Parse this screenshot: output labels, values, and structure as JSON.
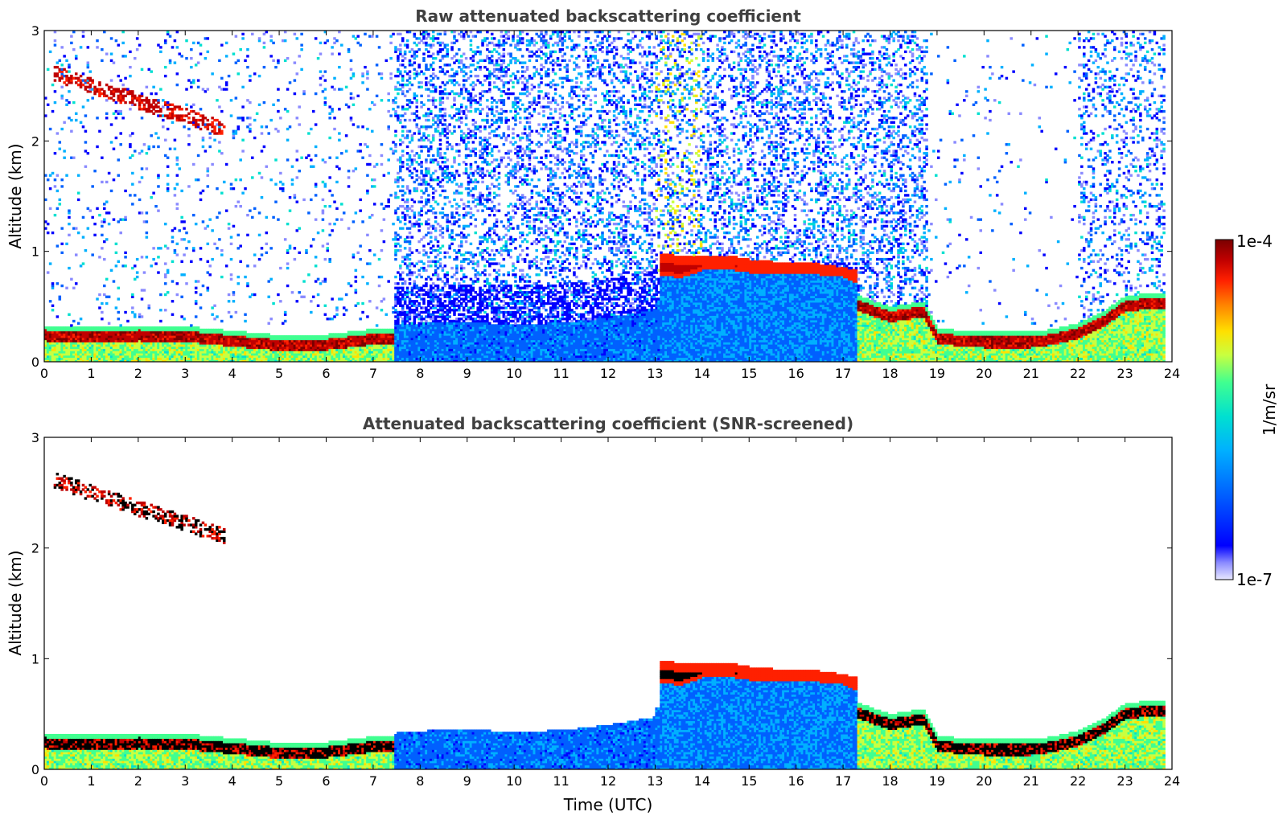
{
  "chart_data": [
    {
      "type": "heatmap",
      "title": "Raw attenuated backscattering coefficient",
      "xlabel": "",
      "ylabel": "Altitude (km)",
      "xlim": [
        0,
        24
      ],
      "ylim": [
        0,
        3
      ],
      "xticks": [
        "0",
        "1",
        "2",
        "3",
        "4",
        "5",
        "6",
        "7",
        "8",
        "9",
        "10",
        "11",
        "12",
        "13",
        "14",
        "15",
        "16",
        "17",
        "18",
        "19",
        "20",
        "21",
        "22",
        "23",
        "24"
      ],
      "yticks": [
        "0",
        "1",
        "2",
        "3"
      ],
      "data_end_hour": 23.85,
      "layers": [
        {
          "name": "boundary-layer-aerosol",
          "t": [
            0,
            1,
            2,
            3,
            4,
            5,
            6,
            7,
            7.4
          ],
          "top_km": [
            0.28,
            0.27,
            0.28,
            0.27,
            0.23,
            0.19,
            0.2,
            0.25,
            0.26
          ]
        },
        {
          "name": "elevated-cloud-layer",
          "t": [
            13.1,
            13.5,
            14,
            14.5,
            15,
            15.5,
            16,
            16.5,
            17,
            17.3
          ],
          "base_km": [
            0.78,
            0.75,
            0.82,
            0.83,
            0.8,
            0.79,
            0.8,
            0.78,
            0.76,
            0.7
          ],
          "top_km": [
            0.98,
            0.95,
            0.94,
            0.96,
            0.92,
            0.9,
            0.89,
            0.88,
            0.85,
            0.82
          ]
        },
        {
          "name": "low-cloud-layer",
          "t": [
            17.3,
            18,
            18.7,
            19,
            20,
            21,
            21.5,
            22,
            22.5,
            23,
            23.85
          ],
          "top_km": [
            0.55,
            0.45,
            0.5,
            0.25,
            0.22,
            0.22,
            0.25,
            0.3,
            0.4,
            0.55,
            0.58
          ]
        },
        {
          "name": "upper-aerosol-streaks",
          "t": [
            0.2,
            3.8
          ],
          "altitude_km": [
            2.6,
            2.1
          ]
        }
      ]
    },
    {
      "type": "heatmap",
      "title": "Attenuated backscattering coefficient (SNR-screened)",
      "xlabel": "Time (UTC)",
      "ylabel": "Altitude (km)",
      "xlim": [
        0,
        24
      ],
      "ylim": [
        0,
        3
      ],
      "xticks": [
        "0",
        "1",
        "2",
        "3",
        "4",
        "5",
        "6",
        "7",
        "8",
        "9",
        "10",
        "11",
        "12",
        "13",
        "14",
        "15",
        "16",
        "17",
        "18",
        "19",
        "20",
        "21",
        "22",
        "23",
        "24"
      ],
      "yticks": [
        "0",
        "1",
        "2",
        "3"
      ],
      "data_end_hour": 23.85
    }
  ],
  "colorbar": {
    "label": "1/m/sr",
    "max_label": "1e-4",
    "min_label": "1e-7",
    "scale": "log",
    "range": [
      1e-07,
      0.0001
    ],
    "colors": [
      "#e8e8ff",
      "#8a8aff",
      "#0000ff",
      "#0060ff",
      "#00b0ff",
      "#00e0d0",
      "#40ff90",
      "#c8ff40",
      "#ffe000",
      "#ff8000",
      "#ff2000",
      "#c00000",
      "#7a0000"
    ]
  }
}
